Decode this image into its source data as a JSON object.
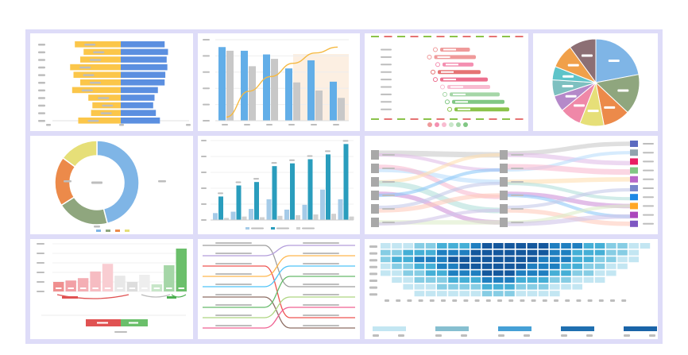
{
  "colors": {
    "frame": "#dedcf8",
    "placeholder": "#bdbdbd",
    "yellow": "#fbc64a",
    "blue": "#5b8fe0",
    "bar_blue": "#62aee8",
    "bar_gray": "#c8c8c8",
    "teal": "#2a9dbd",
    "light_teal": "#a5cbe8",
    "heat": [
      "#eaf5fb",
      "#c3e6f2",
      "#86cde4",
      "#45afd6",
      "#1f7fc0",
      "#14589d"
    ]
  },
  "panels": [
    {
      "chart_data": {
        "type": "bar",
        "subtype": "butterfly",
        "categories": [
          "1",
          "2",
          "3",
          "4",
          "5",
          "6",
          "7",
          "8",
          "9",
          "10",
          "11"
        ],
        "series": [
          {
            "values": [
              6.8,
              5.5,
              6.0,
              7.5,
              7.0,
              6.0,
              7.2,
              4.8,
              4.2,
              4.4,
              6.3
            ]
          },
          {
            "values": [
              6.5,
              7.0,
              6.8,
              6.9,
              6.6,
              6.5,
              5.5,
              5.0,
              4.8,
              5.2,
              5.8
            ]
          }
        ],
        "xlim": [
          -8,
          8
        ],
        "grid": false,
        "legend": "none"
      }
    },
    {
      "chart_data": {
        "type": "bar",
        "subtype": "grouped-with-line",
        "categories": [
          "1",
          "2",
          "3",
          "4",
          "5",
          "6"
        ],
        "series": [
          {
            "values": [
              100,
              95,
              90,
              71,
              82,
              53
            ]
          },
          {
            "values": [
              95,
              74,
              84,
              52,
              41,
              31
            ]
          },
          {
            "type": "line",
            "values": [
              5,
              40,
              60,
              78,
              92,
              100
            ]
          }
        ],
        "ylim": [
          0,
          110
        ],
        "grid": true,
        "legend": "none"
      }
    },
    {
      "chart_data": {
        "type": "bar",
        "subtype": "range",
        "categories": [
          "1",
          "2",
          "3",
          "4",
          "5",
          "6",
          "7",
          "8",
          "9"
        ],
        "series": [
          {
            "type": "range",
            "values": [
              [
                30,
                55
              ],
              [
                25,
                60
              ],
              [
                32,
                58
              ],
              [
                28,
                64
              ],
              [
                30,
                70
              ],
              [
                36,
                72
              ],
              [
                38,
                80
              ],
              [
                40,
                84
              ],
              [
                42,
                88
              ]
            ]
          }
        ],
        "xlim": [
          0,
          100
        ],
        "grid": false,
        "legend": "bottom"
      }
    },
    {
      "chart_data": {
        "type": "pie",
        "values": [
          22,
          15,
          10,
          9,
          8,
          6,
          6,
          5,
          9,
          10
        ],
        "colors": [
          "#7fb5e6",
          "#8fa67e",
          "#ec8a4a",
          "#e6df78",
          "#ef88a8",
          "#b589c9",
          "#7ec0c0",
          "#5ec4c9",
          "#f0a04a",
          "#8c6f74"
        ],
        "legend": "none"
      }
    },
    {
      "chart_data": {
        "type": "pie",
        "subtype": "donut",
        "values": [
          46,
          20,
          19,
          15
        ],
        "colors": [
          "#7fb5e6",
          "#8fa67e",
          "#ec8a4a",
          "#e6df78"
        ],
        "legend": "bottom"
      }
    },
    {
      "chart_data": {
        "type": "bar",
        "subtype": "grouped",
        "categories": [
          "1",
          "2",
          "3",
          "4",
          "5",
          "6",
          "7",
          "8"
        ],
        "series": [
          {
            "values": [
              10,
              12,
              16,
              30,
              15,
              22,
              44,
              30
            ]
          },
          {
            "values": [
              34,
              50,
              55,
              78,
              82,
              88,
              95,
              110
            ]
          },
          {
            "values": [
              3,
              5,
              4,
              6,
              7,
              8,
              9,
              5
            ]
          }
        ],
        "ylim": [
          0,
          115
        ],
        "grid": true,
        "legend": "bottom"
      }
    },
    {
      "chart_data": {
        "type": "sankey",
        "node_columns": 3,
        "nodes_per_column": [
          6,
          6,
          10
        ],
        "links": [
          [
            0,
            0,
            5
          ],
          [
            0,
            1,
            3
          ],
          [
            1,
            2,
            4
          ],
          [
            1,
            3,
            4
          ],
          [
            2,
            0,
            3
          ],
          [
            2,
            4,
            5
          ],
          [
            3,
            5,
            4
          ],
          [
            3,
            1,
            3
          ],
          [
            4,
            3,
            4
          ],
          [
            4,
            2,
            3
          ],
          [
            5,
            5,
            4
          ],
          [
            5,
            4,
            3
          ],
          [
            6,
            0,
            4
          ],
          [
            6,
            2,
            4
          ],
          [
            7,
            1,
            3
          ],
          [
            7,
            3,
            5
          ],
          [
            8,
            4,
            4
          ],
          [
            8,
            6,
            3
          ],
          [
            9,
            7,
            4
          ],
          [
            9,
            8,
            3
          ],
          [
            10,
            9,
            4
          ],
          [
            10,
            5,
            3
          ],
          [
            11,
            7,
            3
          ],
          [
            11,
            8,
            4
          ]
        ],
        "legend": "none"
      }
    },
    {
      "chart_data": {
        "type": "bar",
        "subtype": "waterfall-columns",
        "categories": [
          "1",
          "2",
          "3",
          "4",
          "5",
          "6",
          "7",
          "8",
          "9",
          "10",
          "11"
        ],
        "values": [
          20,
          23,
          28,
          42,
          58,
          33,
          20,
          35,
          15,
          55,
          90
        ],
        "ylim": [
          0,
          100
        ],
        "grid": true,
        "legend": "none"
      }
    },
    {
      "chart_data": {
        "type": "line",
        "subtype": "bump",
        "series": [
          {
            "values": [
              1,
              5
            ]
          },
          {
            "values": [
              2,
              1
            ]
          },
          {
            "values": [
              3,
              8
            ]
          },
          {
            "values": [
              4,
              2
            ]
          },
          {
            "values": [
              5,
              3
            ]
          },
          {
            "values": [
              6,
              9
            ]
          },
          {
            "values": [
              7,
              4
            ]
          },
          {
            "values": [
              8,
              6
            ]
          },
          {
            "values": [
              9,
              7
            ]
          }
        ],
        "legend": "none"
      }
    },
    {
      "chart_data": {
        "type": "heatmap",
        "rows": 8,
        "cols": 24,
        "matrix": [
          [
            1,
            1,
            1,
            2,
            2,
            3,
            3,
            3,
            4,
            5,
            5,
            5,
            5,
            5,
            5,
            4,
            4,
            4,
            3,
            3,
            2,
            2,
            1,
            1
          ],
          [
            2,
            2,
            3,
            3,
            3,
            4,
            4,
            4,
            5,
            5,
            5,
            5,
            5,
            5,
            5,
            4,
            4,
            3,
            3,
            3,
            2,
            2,
            1,
            0
          ],
          [
            2,
            3,
            3,
            4,
            4,
            4,
            5,
            5,
            5,
            5,
            5,
            5,
            5,
            5,
            4,
            4,
            4,
            3,
            3,
            2,
            2,
            1,
            1,
            0
          ],
          [
            1,
            2,
            2,
            3,
            3,
            4,
            4,
            5,
            5,
            5,
            5,
            5,
            5,
            4,
            4,
            4,
            3,
            3,
            2,
            2,
            1,
            1,
            0,
            0
          ],
          [
            1,
            1,
            2,
            2,
            3,
            3,
            4,
            4,
            4,
            5,
            5,
            5,
            4,
            4,
            4,
            3,
            3,
            2,
            2,
            1,
            1,
            0,
            0,
            0
          ],
          [
            0,
            1,
            1,
            2,
            2,
            2,
            3,
            3,
            3,
            4,
            4,
            4,
            3,
            3,
            3,
            2,
            2,
            1,
            1,
            1,
            0,
            0,
            0,
            0
          ],
          [
            0,
            0,
            1,
            1,
            1,
            2,
            2,
            2,
            2,
            3,
            3,
            3,
            2,
            2,
            2,
            1,
            1,
            1,
            0,
            0,
            0,
            0,
            0,
            0
          ],
          [
            0,
            0,
            0,
            1,
            1,
            1,
            1,
            1,
            1,
            2,
            2,
            2,
            1,
            1,
            1,
            1,
            0,
            0,
            0,
            0,
            0,
            0,
            0,
            0
          ]
        ],
        "legend": "bottom"
      }
    }
  ]
}
